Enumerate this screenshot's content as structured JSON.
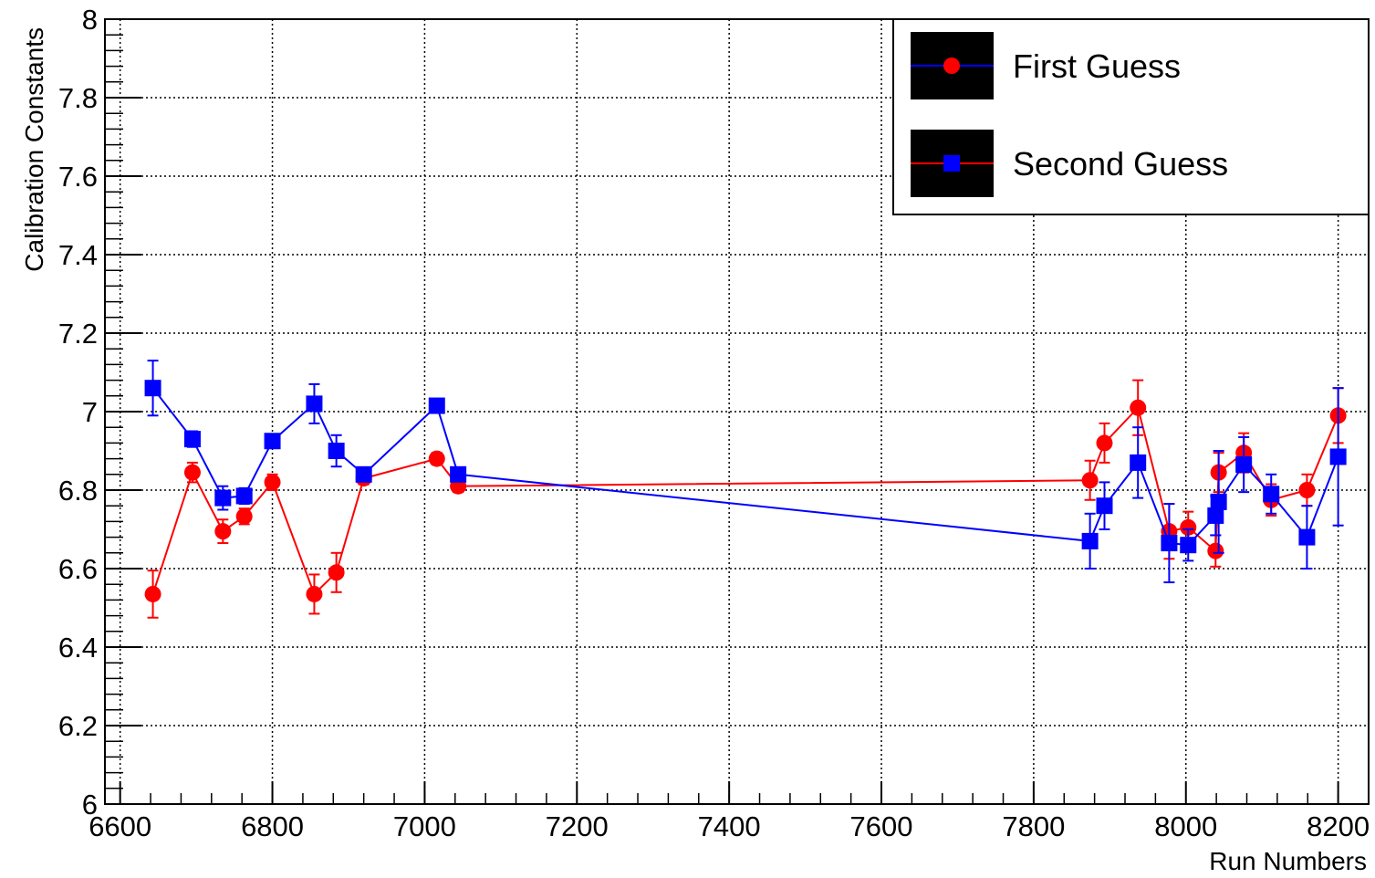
{
  "chart_data": {
    "type": "scatter",
    "title": "",
    "xlabel": "Run Numbers",
    "ylabel": "Calibration Constants",
    "xlim": [
      6580,
      8240
    ],
    "ylim": [
      6,
      8
    ],
    "x_ticks": [
      6600,
      6800,
      7000,
      7200,
      7400,
      7600,
      7800,
      8000,
      8200
    ],
    "y_ticks": [
      6,
      6.2,
      6.4,
      6.6,
      6.8,
      7,
      7.2,
      7.4,
      7.6,
      7.8,
      8
    ],
    "x_tick_labels": [
      "6600",
      "6800",
      "7000",
      "7200",
      "7400",
      "7600",
      "7800",
      "8000",
      "8200"
    ],
    "y_tick_labels": [
      "6",
      "6.2",
      "6.4",
      "6.6",
      "6.8",
      "7",
      "7.2",
      "7.4",
      "7.6",
      "7.8",
      "8"
    ],
    "grid": true,
    "legend_position": "top-right",
    "series": [
      {
        "name": "First Guess",
        "marker": "circle",
        "marker_color": "#ff0000",
        "line_color": "#ff0000",
        "legend_line_color": "#0000ff",
        "points": [
          {
            "x": 6643,
            "y": 6.535,
            "err": 0.06
          },
          {
            "x": 6695,
            "y": 6.845,
            "err": 0.025
          },
          {
            "x": 6735,
            "y": 6.695,
            "err": 0.03
          },
          {
            "x": 6763,
            "y": 6.733,
            "err": 0.02
          },
          {
            "x": 6800,
            "y": 6.82,
            "err": 0.02
          },
          {
            "x": 6855,
            "y": 6.535,
            "err": 0.05
          },
          {
            "x": 6884,
            "y": 6.59,
            "err": 0.05
          },
          {
            "x": 6920,
            "y": 6.83,
            "err": 0.015
          },
          {
            "x": 7016,
            "y": 6.88,
            "err": 0.015
          },
          {
            "x": 7044,
            "y": 6.81,
            "err": 0.015
          },
          {
            "x": 7874,
            "y": 6.825,
            "err": 0.05
          },
          {
            "x": 7893,
            "y": 6.92,
            "err": 0.05
          },
          {
            "x": 7937,
            "y": 7.01,
            "err": 0.07
          },
          {
            "x": 7978,
            "y": 6.695,
            "err": 0.07
          },
          {
            "x": 8003,
            "y": 6.705,
            "err": 0.04
          },
          {
            "x": 8039,
            "y": 6.645,
            "err": 0.04
          },
          {
            "x": 8043,
            "y": 6.845,
            "err": 0.05
          },
          {
            "x": 8076,
            "y": 6.895,
            "err": 0.05
          },
          {
            "x": 8112,
            "y": 6.775,
            "err": 0.04
          },
          {
            "x": 8159,
            "y": 6.8,
            "err": 0.04
          },
          {
            "x": 8200,
            "y": 6.99,
            "err": 0.07
          }
        ]
      },
      {
        "name": "Second Guess",
        "marker": "square",
        "marker_color": "#0000ff",
        "line_color": "#0000ff",
        "legend_line_color": "#ff0000",
        "points": [
          {
            "x": 6643,
            "y": 7.06,
            "err": 0.07
          },
          {
            "x": 6695,
            "y": 6.93,
            "err": 0.02
          },
          {
            "x": 6735,
            "y": 6.78,
            "err": 0.03
          },
          {
            "x": 6763,
            "y": 6.785,
            "err": 0.02
          },
          {
            "x": 6800,
            "y": 6.925,
            "err": 0.015
          },
          {
            "x": 6855,
            "y": 7.02,
            "err": 0.05
          },
          {
            "x": 6884,
            "y": 6.9,
            "err": 0.04
          },
          {
            "x": 6920,
            "y": 6.84,
            "err": 0.015
          },
          {
            "x": 7016,
            "y": 7.015,
            "err": 0.015
          },
          {
            "x": 7044,
            "y": 6.84,
            "err": 0.015
          },
          {
            "x": 7874,
            "y": 6.67,
            "err": 0.07
          },
          {
            "x": 7893,
            "y": 6.76,
            "err": 0.06
          },
          {
            "x": 7937,
            "y": 6.87,
            "err": 0.09
          },
          {
            "x": 7978,
            "y": 6.665,
            "err": 0.1
          },
          {
            "x": 8003,
            "y": 6.66,
            "err": 0.04
          },
          {
            "x": 8039,
            "y": 6.735,
            "err": 0.05
          },
          {
            "x": 8043,
            "y": 6.77,
            "err": 0.13
          },
          {
            "x": 8076,
            "y": 6.865,
            "err": 0.07
          },
          {
            "x": 8112,
            "y": 6.79,
            "err": 0.05
          },
          {
            "x": 8159,
            "y": 6.68,
            "err": 0.08
          },
          {
            "x": 8200,
            "y": 6.885,
            "err": 0.175
          }
        ]
      }
    ]
  }
}
